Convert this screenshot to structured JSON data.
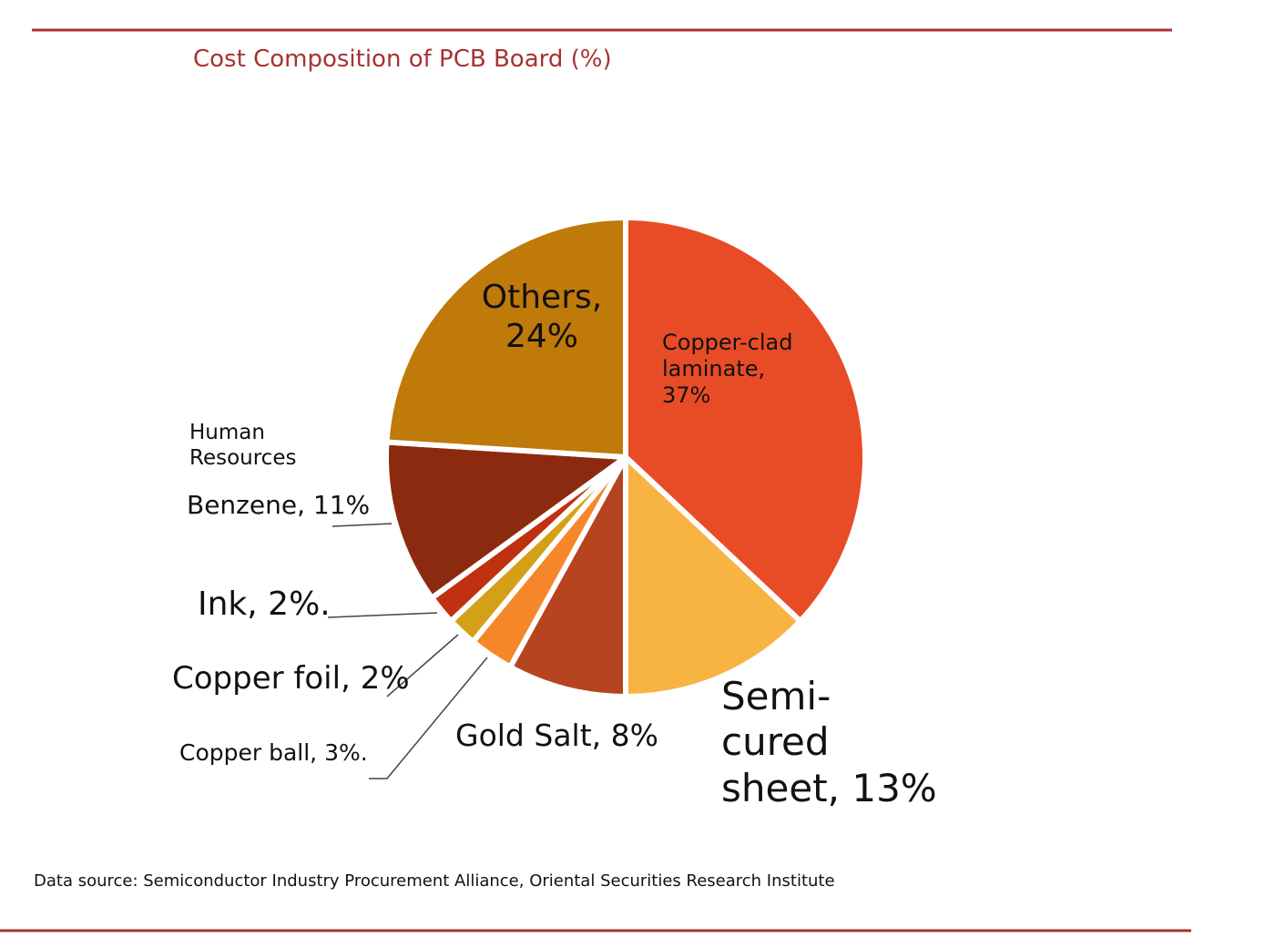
{
  "chart_data": {
    "type": "pie",
    "title": "Cost Composition of PCB Board (%)",
    "annotations": [
      "Human Resources"
    ],
    "source": "Data source: Semiconductor Industry Procurement Alliance, Oriental Securities Research Institute",
    "labels": [
      "Copper-clad laminate, 37%",
      "Semi- cured sheet, 13%",
      "Gold Salt, 8%",
      "Copper ball, 3%.",
      "Copper foil, 2%",
      "Ink, 2%.",
      "Benzene, 11%",
      "Others, 24%"
    ],
    "values": [
      37,
      13,
      8,
      3,
      2,
      2,
      11,
      24
    ],
    "colors": [
      "#e84c26",
      "#f8b443",
      "#b5441f",
      "#f5862a",
      "#d4a017",
      "#c0310f",
      "#8c2a10",
      "#c07a0a"
    ]
  }
}
